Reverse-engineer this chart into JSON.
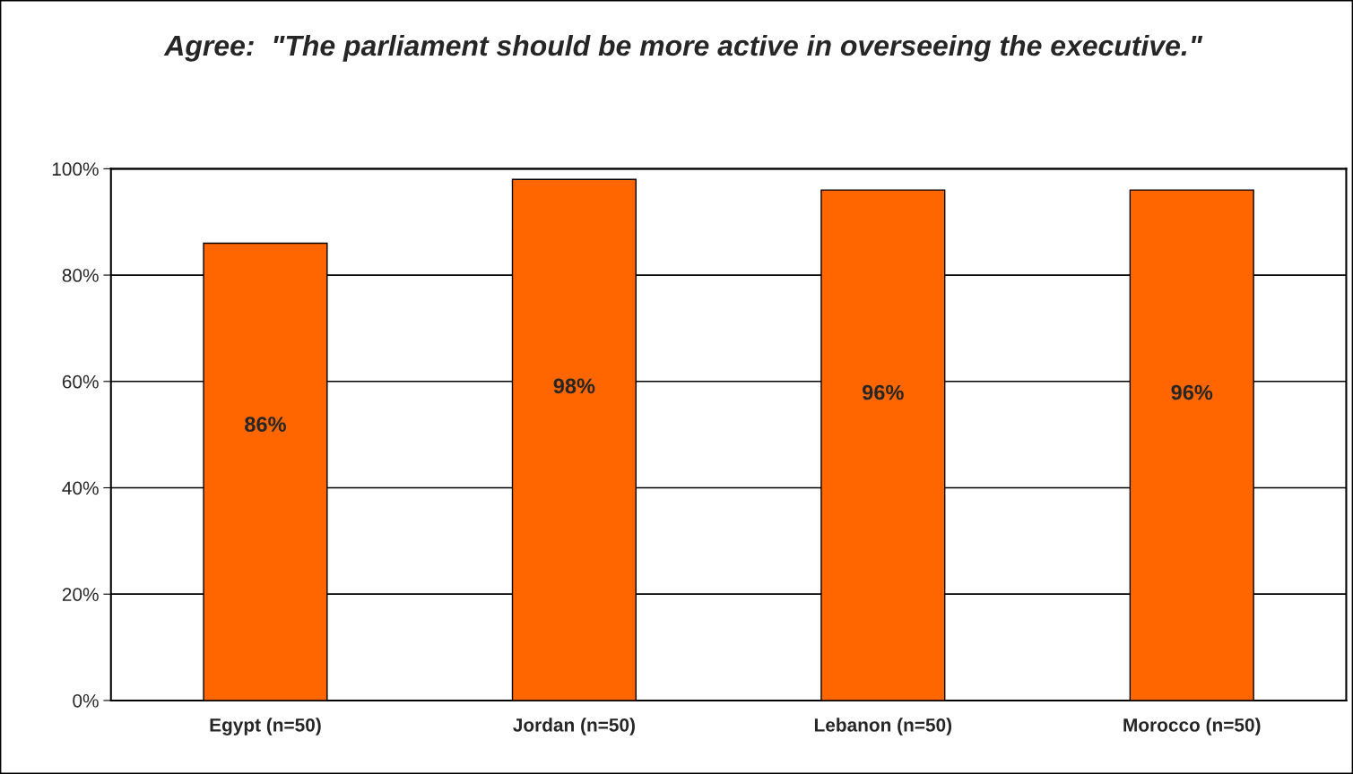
{
  "chart_data": {
    "type": "bar",
    "title": "Agree:  \"The parliament should be more active in overseeing the executive.\"",
    "categories": [
      "Egypt (n=50)",
      "Jordan (n=50)",
      "Lebanon (n=50)",
      "Morocco (n=50)"
    ],
    "values": [
      86,
      98,
      96,
      96
    ],
    "color": "#ff6600",
    "value_labels": [
      "86%",
      "98%",
      "96%",
      "96%"
    ],
    "ylim": [
      0,
      100
    ],
    "yticks": [
      {
        "value": 0,
        "label": "0%"
      },
      {
        "value": 20,
        "label": "20%"
      },
      {
        "value": 40,
        "label": "40%"
      },
      {
        "value": 60,
        "label": "60%"
      },
      {
        "value": 80,
        "label": "80%"
      },
      {
        "value": 100,
        "label": "100%"
      }
    ],
    "grid": "y"
  }
}
